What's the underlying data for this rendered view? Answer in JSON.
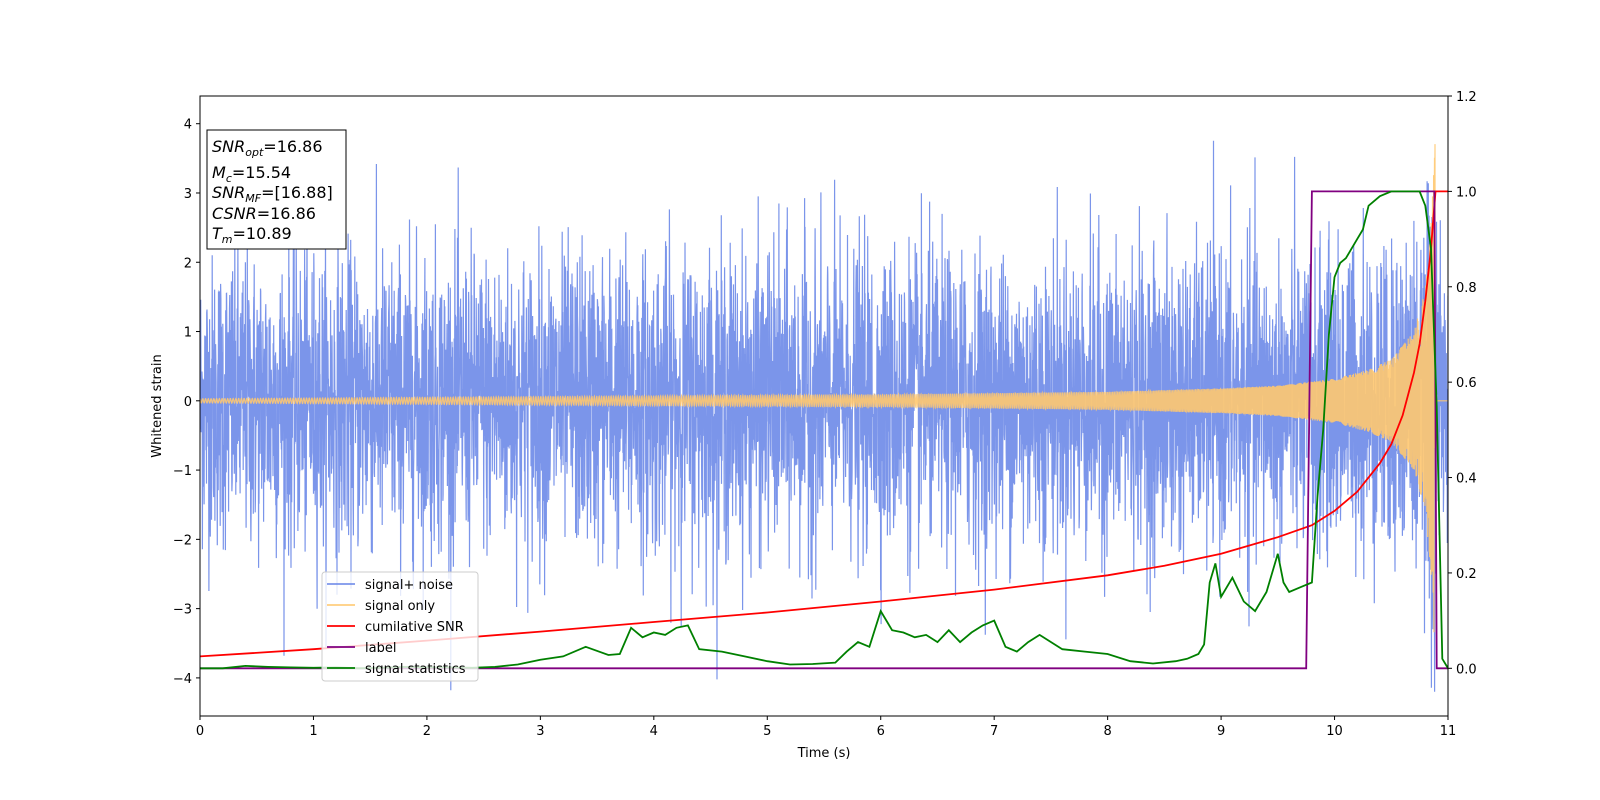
{
  "chart_data": {
    "type": "line",
    "xlabel": "Time (s)",
    "ylabel": "Whitened strain",
    "xlim": [
      0,
      11
    ],
    "ylim": [
      -4.55,
      4.4
    ],
    "y2lim": [
      -0.1,
      1.2
    ],
    "xticks": [
      "0",
      "1",
      "2",
      "3",
      "4",
      "5",
      "6",
      "7",
      "8",
      "9",
      "10",
      "11"
    ],
    "yticks": [
      "−4",
      "−3",
      "−2",
      "−1",
      "0",
      "1",
      "2",
      "3",
      "4"
    ],
    "y2ticks": [
      "0.0",
      "0.2",
      "0.4",
      "0.6",
      "0.8",
      "1.0",
      "1.2"
    ],
    "legend_position": "lower-left",
    "colors": {
      "noise": "#6482e6",
      "signal": "#ffc870",
      "csnr": "#ff0000",
      "label": "#800080",
      "stats": "#008000"
    },
    "series": [
      {
        "key": "signal_noise",
        "name": "signal+ noise",
        "axis": "left",
        "description_values": "whitened detector strain: Gaussian noise of roughly unit variance (peaks near ±3.5 to +4.0) with the chirp signal added",
        "amplitude_range": [
          -4.2,
          4.0
        ]
      },
      {
        "key": "signal_only",
        "name": "signal only",
        "axis": "left",
        "chirp_envelope": {
          "x": [
            0,
            2,
            4,
            6,
            8,
            9,
            9.5,
            10,
            10.3,
            10.5,
            10.7,
            10.8,
            10.85,
            10.89
          ],
          "y": [
            0.03,
            0.05,
            0.07,
            0.09,
            0.13,
            0.18,
            0.22,
            0.32,
            0.45,
            0.6,
            1.0,
            1.6,
            2.5,
            3.9
          ]
        }
      },
      {
        "key": "csnr",
        "name": "cumilative SNR",
        "axis": "right",
        "x": [
          0,
          1,
          2,
          3,
          4,
          5,
          6,
          7,
          8,
          8.5,
          9,
          9.5,
          9.8,
          10,
          10.2,
          10.4,
          10.5,
          10.6,
          10.7,
          10.75,
          10.8,
          10.85,
          10.89,
          11
        ],
        "y": [
          0.025,
          0.04,
          0.058,
          0.077,
          0.097,
          0.117,
          0.14,
          0.165,
          0.195,
          0.215,
          0.24,
          0.275,
          0.3,
          0.33,
          0.37,
          0.43,
          0.47,
          0.53,
          0.62,
          0.68,
          0.77,
          0.88,
          1.0,
          1.0
        ]
      },
      {
        "key": "label",
        "name": "label",
        "axis": "right",
        "x": [
          0,
          9.75,
          9.8,
          10.88,
          10.9,
          11
        ],
        "y": [
          0.0,
          0.0,
          1.0,
          1.0,
          0.0,
          0.0
        ]
      },
      {
        "key": "stats",
        "name": "signal statistics",
        "axis": "right",
        "x": [
          0,
          0.2,
          0.4,
          0.6,
          0.8,
          1,
          1.2,
          1.4,
          1.6,
          1.8,
          2,
          2.2,
          2.4,
          2.6,
          2.8,
          3,
          3.2,
          3.4,
          3.6,
          3.7,
          3.8,
          3.9,
          4,
          4.1,
          4.2,
          4.3,
          4.4,
          4.6,
          4.8,
          5,
          5.2,
          5.4,
          5.6,
          5.7,
          5.8,
          5.9,
          6,
          6.1,
          6.2,
          6.3,
          6.4,
          6.5,
          6.6,
          6.7,
          6.8,
          6.9,
          7,
          7.1,
          7.2,
          7.3,
          7.4,
          7.6,
          7.8,
          8,
          8.2,
          8.4,
          8.6,
          8.7,
          8.8,
          8.85,
          8.9,
          8.95,
          9,
          9.1,
          9.2,
          9.3,
          9.4,
          9.5,
          9.55,
          9.6,
          9.7,
          9.8,
          9.85,
          9.9,
          9.95,
          10,
          10.05,
          10.1,
          10.2,
          10.25,
          10.3,
          10.4,
          10.5,
          10.6,
          10.7,
          10.75,
          10.8,
          10.85,
          10.9,
          10.95,
          11
        ],
        "y": [
          0.0,
          0.0,
          0.005,
          0.003,
          0.002,
          0.001,
          0.002,
          0.0,
          0.001,
          0.003,
          0.002,
          0.002,
          0.001,
          0.003,
          0.008,
          0.018,
          0.025,
          0.045,
          0.028,
          0.03,
          0.085,
          0.065,
          0.075,
          0.07,
          0.085,
          0.09,
          0.04,
          0.035,
          0.025,
          0.015,
          0.008,
          0.009,
          0.012,
          0.035,
          0.055,
          0.045,
          0.12,
          0.08,
          0.075,
          0.065,
          0.07,
          0.055,
          0.08,
          0.055,
          0.075,
          0.09,
          0.1,
          0.045,
          0.035,
          0.055,
          0.07,
          0.04,
          0.035,
          0.03,
          0.015,
          0.01,
          0.015,
          0.02,
          0.03,
          0.05,
          0.18,
          0.22,
          0.15,
          0.19,
          0.14,
          0.12,
          0.16,
          0.24,
          0.18,
          0.16,
          0.17,
          0.18,
          0.36,
          0.5,
          0.7,
          0.82,
          0.85,
          0.86,
          0.9,
          0.92,
          0.97,
          0.99,
          1.0,
          1.0,
          1.0,
          1.0,
          0.97,
          0.88,
          0.55,
          0.02,
          0.0
        ]
      }
    ],
    "annotation": {
      "lines": [
        {
          "base": "SNR",
          "sub": "opt",
          "value": "=16.86"
        },
        {
          "base": "M",
          "sub": "c",
          "value": "=15.54"
        },
        {
          "base": "SNR",
          "sub": "MF",
          "value": "=[16.88]"
        },
        {
          "base": "CSNR",
          "sub": "",
          "value": "=16.86"
        },
        {
          "base": "T",
          "sub": "m",
          "value": "=10.89"
        }
      ]
    }
  }
}
